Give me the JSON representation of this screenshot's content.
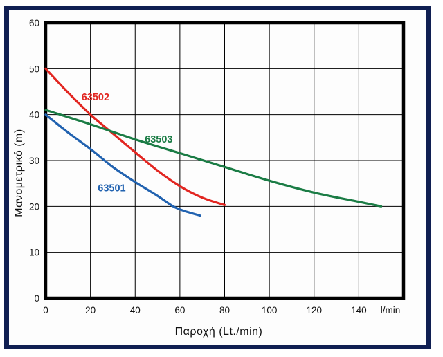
{
  "frame": {
    "border_color": "#101f52",
    "background": "#fdfdfd"
  },
  "chart_data": {
    "type": "line",
    "title": "",
    "xlabel": "Παροχή (Lt./min)",
    "ylabel": "Μανομετρικό (m)",
    "x_unit_label": "l/min",
    "xlim": [
      0,
      160
    ],
    "ylim": [
      0,
      60
    ],
    "x_ticks": [
      0,
      20,
      40,
      60,
      80,
      100,
      120,
      140
    ],
    "y_ticks": [
      0,
      10,
      20,
      30,
      40,
      50,
      60
    ],
    "grid": true,
    "grid_color": "#000000",
    "axis_frame_color": "#000000",
    "legend_position": "inline-labels",
    "series": [
      {
        "name": "63501",
        "color": "#2162b0",
        "label_at": [
          23.3,
          23.3
        ],
        "points": [
          [
            0,
            40
          ],
          [
            10,
            36.1
          ],
          [
            20,
            32.5
          ],
          [
            30,
            28.6
          ],
          [
            40,
            25.3
          ],
          [
            50,
            22.3
          ],
          [
            57,
            20
          ],
          [
            62,
            19
          ],
          [
            69,
            18
          ]
        ]
      },
      {
        "name": "63502",
        "color": "#e22621",
        "label_at": [
          16,
          43.1
        ],
        "points": [
          [
            0,
            50
          ],
          [
            10,
            44.8
          ],
          [
            20,
            40
          ],
          [
            30,
            35.9
          ],
          [
            40,
            31.8
          ],
          [
            50,
            27.8
          ],
          [
            60,
            24.4
          ],
          [
            70,
            21.9
          ],
          [
            80,
            20.3
          ]
        ]
      },
      {
        "name": "63503",
        "color": "#1b7c45",
        "label_at": [
          44.3,
          33.9
        ],
        "points": [
          [
            0,
            41
          ],
          [
            20,
            37.9
          ],
          [
            40,
            34.6
          ],
          [
            60,
            31.6
          ],
          [
            80,
            28.6
          ],
          [
            100,
            25.6
          ],
          [
            120,
            23.0
          ],
          [
            140,
            21.0
          ],
          [
            150,
            20
          ]
        ]
      }
    ]
  }
}
